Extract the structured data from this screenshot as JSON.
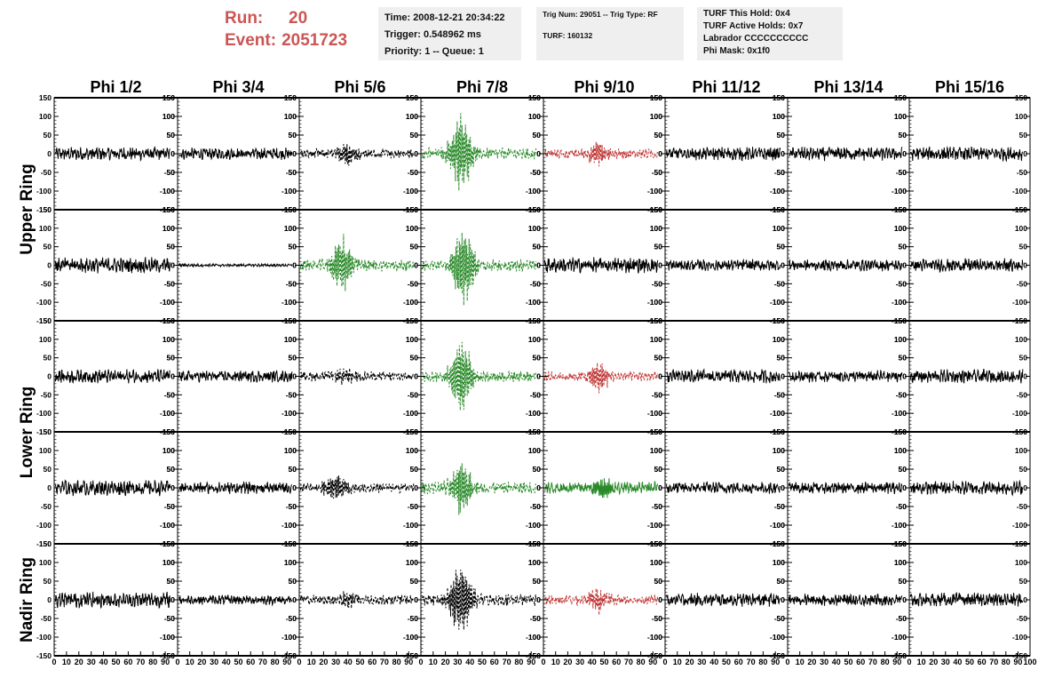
{
  "header": {
    "run_label": "Run:",
    "run_value": "20",
    "event_label": "Event:",
    "event_value": "2051723",
    "time": "Time: 2008-12-21 20:34:22",
    "trigger": "Trigger: 0.548962 ms",
    "priority": "Priority: 1 -- Queue: 1",
    "trig_num": "Trig Num: 29051 -- Trig Type: RF",
    "turf": "TURF: 160132",
    "turf_this_hold": "TURF This Hold: 0x4",
    "turf_active_holds": "TURF Active Holds: 0x7",
    "labrador": "Labrador CCCCCCCCCC",
    "phi_mask": "Phi Mask: 0x1f0"
  },
  "chart_data": {
    "type": "line",
    "column_titles": [
      "Phi 1/2",
      "Phi 3/4",
      "Phi 5/6",
      "Phi 7/8",
      "Phi 9/10",
      "Phi 11/12",
      "Phi 13/14",
      "Phi 15/16"
    ],
    "row_titles": [
      "Upper Ring",
      "Lower Ring",
      "Nadir Ring"
    ],
    "ylim": [
      -150,
      150
    ],
    "xlim": [
      0,
      100
    ],
    "y_ticks": [
      "150",
      "100",
      "50",
      "0",
      "-50",
      "-100",
      "-150"
    ],
    "x_tick_labels": [
      "0",
      "10",
      "20",
      "30",
      "40",
      "50",
      "60",
      "70",
      "80",
      "90",
      "100"
    ],
    "colors": {
      "normal": "#000000",
      "triggered": "#2a8a2a",
      "masked": "#c03535"
    },
    "panels": [
      [
        {
          "color": "normal",
          "style": "solid",
          "amp": 14,
          "center": 50,
          "burst": 0
        },
        {
          "color": "normal",
          "style": "solid",
          "amp": 12,
          "center": 50,
          "burst": 0
        },
        {
          "color": "normal",
          "style": "dashed",
          "amp": 10,
          "center": 40,
          "burst": 30
        },
        {
          "color": "triggered",
          "style": "dashed",
          "amp": 12,
          "center": 33,
          "burst": 110
        },
        {
          "color": "masked",
          "style": "dashed",
          "amp": 10,
          "center": 45,
          "burst": 30
        },
        {
          "color": "normal",
          "style": "solid",
          "amp": 14,
          "center": 50,
          "burst": 0
        },
        {
          "color": "normal",
          "style": "solid",
          "amp": 14,
          "center": 50,
          "burst": 0
        },
        {
          "color": "normal",
          "style": "solid",
          "amp": 14,
          "center": 50,
          "burst": 0
        }
      ],
      [
        {
          "color": "normal",
          "style": "solid",
          "amp": 16,
          "center": 50,
          "burst": 0
        },
        {
          "color": "normal",
          "style": "solid",
          "amp": 3,
          "center": 50,
          "burst": 0
        },
        {
          "color": "triggered",
          "style": "dashed",
          "amp": 12,
          "center": 35,
          "burst": 75
        },
        {
          "color": "triggered",
          "style": "dashed",
          "amp": 12,
          "center": 35,
          "burst": 110
        },
        {
          "color": "normal",
          "style": "solid",
          "amp": 16,
          "center": 50,
          "burst": 0
        },
        {
          "color": "normal",
          "style": "solid",
          "amp": 12,
          "center": 50,
          "burst": 0
        },
        {
          "color": "normal",
          "style": "solid",
          "amp": 12,
          "center": 50,
          "burst": 0
        },
        {
          "color": "normal",
          "style": "solid",
          "amp": 14,
          "center": 50,
          "burst": 0
        }
      ],
      [
        {
          "color": "normal",
          "style": "solid",
          "amp": 14,
          "center": 50,
          "burst": 0
        },
        {
          "color": "normal",
          "style": "solid",
          "amp": 12,
          "center": 50,
          "burst": 0
        },
        {
          "color": "normal",
          "style": "dashed",
          "amp": 10,
          "center": 40,
          "burst": 20
        },
        {
          "color": "triggered",
          "style": "dashed",
          "amp": 12,
          "center": 33,
          "burst": 110
        },
        {
          "color": "masked",
          "style": "dashed",
          "amp": 10,
          "center": 45,
          "burst": 45
        },
        {
          "color": "normal",
          "style": "solid",
          "amp": 14,
          "center": 50,
          "burst": 0
        },
        {
          "color": "normal",
          "style": "solid",
          "amp": 12,
          "center": 50,
          "burst": 0
        },
        {
          "color": "normal",
          "style": "solid",
          "amp": 14,
          "center": 50,
          "burst": 0
        }
      ],
      [
        {
          "color": "normal",
          "style": "solid",
          "amp": 16,
          "center": 50,
          "burst": 0
        },
        {
          "color": "normal",
          "style": "solid",
          "amp": 12,
          "center": 50,
          "burst": 0
        },
        {
          "color": "normal",
          "style": "dashed",
          "amp": 10,
          "center": 30,
          "burst": 40
        },
        {
          "color": "triggered",
          "style": "dashed",
          "amp": 12,
          "center": 33,
          "burst": 75
        },
        {
          "color": "triggered",
          "style": "solid",
          "amp": 12,
          "center": 50,
          "burst": 28
        },
        {
          "color": "normal",
          "style": "solid",
          "amp": 12,
          "center": 50,
          "burst": 0
        },
        {
          "color": "normal",
          "style": "solid",
          "amp": 12,
          "center": 50,
          "burst": 0
        },
        {
          "color": "normal",
          "style": "solid",
          "amp": 14,
          "center": 50,
          "burst": 0
        }
      ],
      [
        {
          "color": "normal",
          "style": "solid",
          "amp": 16,
          "center": 50,
          "burst": 0
        },
        {
          "color": "normal",
          "style": "solid",
          "amp": 10,
          "center": 50,
          "burst": 0
        },
        {
          "color": "normal",
          "style": "dashed",
          "amp": 10,
          "center": 40,
          "burst": 20
        },
        {
          "color": "normal",
          "style": "dashed",
          "amp": 12,
          "center": 33,
          "burst": 110
        },
        {
          "color": "masked",
          "style": "dashed",
          "amp": 10,
          "center": 45,
          "burst": 35
        },
        {
          "color": "normal",
          "style": "solid",
          "amp": 14,
          "center": 50,
          "burst": 0
        },
        {
          "color": "normal",
          "style": "solid",
          "amp": 12,
          "center": 50,
          "burst": 0
        },
        {
          "color": "normal",
          "style": "solid",
          "amp": 14,
          "center": 50,
          "burst": 0
        }
      ]
    ]
  }
}
